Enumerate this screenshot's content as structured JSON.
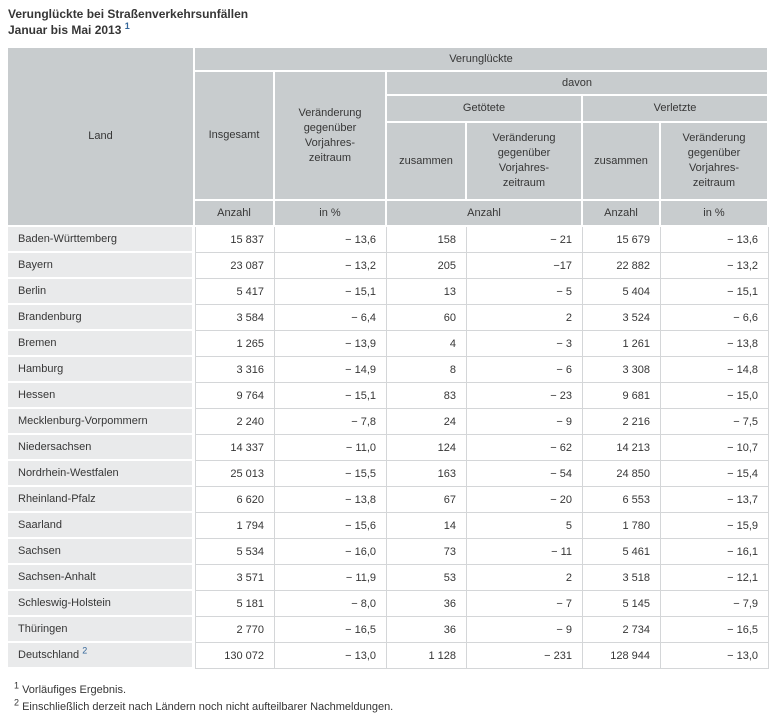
{
  "title": {
    "line1": "Verunglückte bei Straßenverkehrsunfällen",
    "line2": "Januar bis Mai 2013",
    "footnote_ref": "1"
  },
  "table": {
    "header": {
      "land": "Land",
      "verunglueckte": "Verunglückte",
      "insgesamt": "Insgesamt",
      "veraenderung": "Veränderung\ngegenüber\nVorjahres-\nzeitraum",
      "davon": "davon",
      "getoetete": "Getötete",
      "verletzte": "Verletzte",
      "zusammen": "zusammen",
      "unit_anzahl": "Anzahl",
      "unit_prozent": "in %"
    },
    "rows": [
      {
        "land": "Baden-Württemberg",
        "values": [
          "15 837",
          "− 13,6",
          "158",
          "− 21",
          "15 679",
          "− 13,6"
        ]
      },
      {
        "land": "Bayern",
        "values": [
          "23 087",
          "− 13,2",
          "205",
          "−17",
          "22 882",
          "− 13,2"
        ]
      },
      {
        "land": "Berlin",
        "values": [
          "5 417",
          "− 15,1",
          "13",
          "− 5",
          "5 404",
          "− 15,1"
        ]
      },
      {
        "land": "Brandenburg",
        "values": [
          "3 584",
          "− 6,4",
          "60",
          "2",
          "3 524",
          "− 6,6"
        ]
      },
      {
        "land": "Bremen",
        "values": [
          "1 265",
          "− 13,9",
          "4",
          "− 3",
          "1 261",
          "− 13,8"
        ]
      },
      {
        "land": "Hamburg",
        "values": [
          "3 316",
          "− 14,9",
          "8",
          "− 6",
          "3 308",
          "− 14,8"
        ]
      },
      {
        "land": "Hessen",
        "values": [
          "9 764",
          "− 15,1",
          "83",
          "− 23",
          "9 681",
          "− 15,0"
        ]
      },
      {
        "land": "Mecklenburg-Vorpommern",
        "values": [
          "2 240",
          "− 7,8",
          "24",
          "− 9",
          "2 216",
          "− 7,5"
        ]
      },
      {
        "land": "Niedersachsen",
        "values": [
          "14 337",
          "− 11,0",
          "124",
          "− 62",
          "14 213",
          "− 10,7"
        ]
      },
      {
        "land": "Nordrhein-Westfalen",
        "values": [
          "25 013",
          "− 15,5",
          "163",
          "− 54",
          "24 850",
          "− 15,4"
        ]
      },
      {
        "land": "Rheinland-Pfalz",
        "values": [
          "6 620",
          "− 13,8",
          "67",
          "− 20",
          "6 553",
          "− 13,7"
        ]
      },
      {
        "land": "Saarland",
        "values": [
          "1 794",
          "− 15,6",
          "14",
          "5",
          "1 780",
          "− 15,9"
        ]
      },
      {
        "land": "Sachsen",
        "values": [
          "5 534",
          "− 16,0",
          "73",
          "− 11",
          "5 461",
          "− 16,1"
        ]
      },
      {
        "land": "Sachsen-Anhalt",
        "values": [
          "3 571",
          "− 11,9",
          "53",
          "2",
          "3 518",
          "− 12,1"
        ]
      },
      {
        "land": "Schleswig-Holstein",
        "values": [
          "5 181",
          "− 8,0",
          "36",
          "− 7",
          "5 145",
          "− 7,9"
        ]
      },
      {
        "land": "Thüringen",
        "values": [
          "2 770",
          "− 16,5",
          "36",
          "− 9",
          "2 734",
          "− 16,5"
        ]
      },
      {
        "land": "Deutschland",
        "footnote_ref": "2",
        "values": [
          "130 072",
          "− 13,0",
          "1 128",
          "− 231",
          "128 944",
          "− 13,0"
        ]
      }
    ]
  },
  "footnotes": [
    {
      "marker": "1",
      "text": "Vorläufiges Ergebnis."
    },
    {
      "marker": "2",
      "text": "Einschließlich derzeit nach Ländern noch nicht aufteilbarer Nachmeldungen."
    }
  ],
  "colors": {
    "header_bg": "#c8ccce",
    "stub_bg": "#e9eaeb",
    "grid": "#d4d6d8",
    "text": "#363636",
    "accent_blue": "#336699"
  }
}
